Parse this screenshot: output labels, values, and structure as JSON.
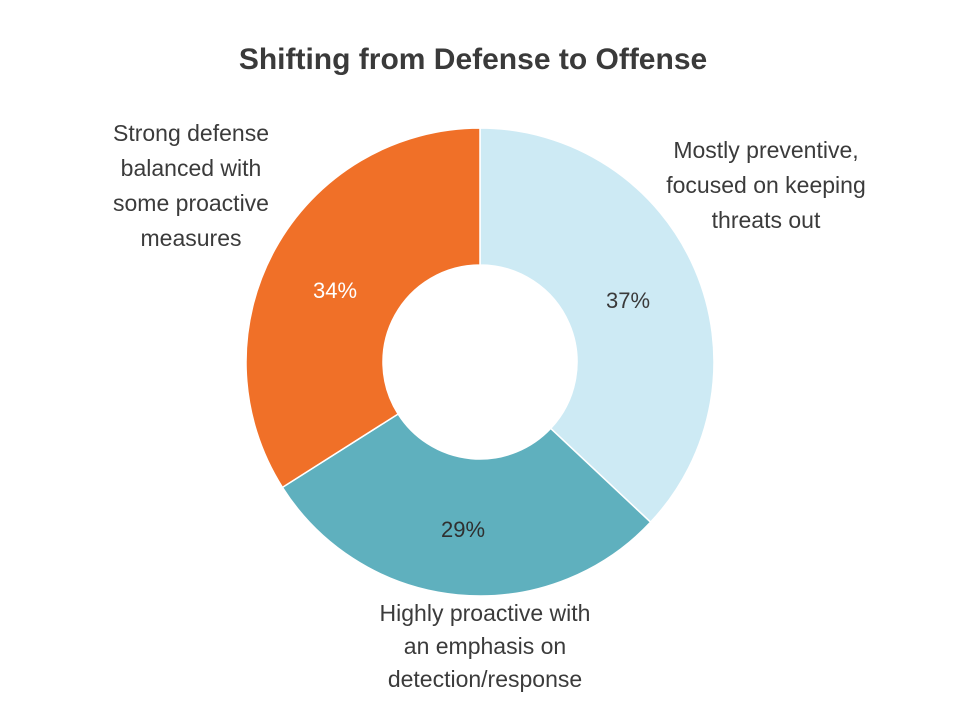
{
  "chart_data": {
    "type": "pie",
    "style": "donut",
    "title": "Shifting from Defense to Offense",
    "slices": [
      {
        "label": "Mostly preventive, focused on keeping threats out",
        "label_lines": [
          "Mostly preventive,",
          "focused on keeping",
          "threats out"
        ],
        "value": 37,
        "value_label": "37%",
        "color": "#cdeaf4",
        "label_color": "#3a3a3a"
      },
      {
        "label": "Highly proactive with an emphasis on detection/response",
        "label_lines": [
          "Highly proactive with",
          "an emphasis on",
          "detection/response"
        ],
        "value": 29,
        "value_label": "29%",
        "color": "#5fb0be",
        "label_color": "#2f2f2f"
      },
      {
        "label": "Strong defense balanced with some proactive measures",
        "label_lines": [
          "Strong defense",
          "balanced with",
          "some proactive",
          "measures"
        ],
        "value": 34,
        "value_label": "34%",
        "color": "#f07028",
        "label_color": "#ffffff"
      }
    ]
  }
}
